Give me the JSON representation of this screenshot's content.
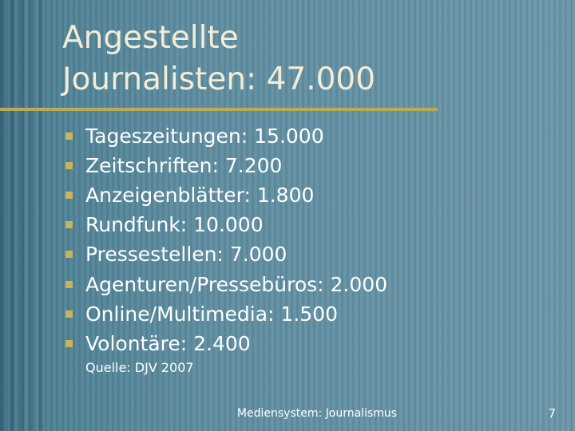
{
  "title": {
    "lines": [
      "Angestellte",
      "Journalisten: 47.000"
    ]
  },
  "bullets": [
    "Tageszeitungen: 15.000",
    "Zeitschriften: 7.200",
    "Anzeigenblätter: 1.800",
    "Rundfunk: 10.000",
    "Pressestellen: 7.000",
    "Agenturen/Pressebüros: 2.000",
    "Online/Multimedia: 1.500",
    "Volontäre: 2.400"
  ],
  "source": "Quelle: DJV 2007",
  "footer": {
    "text": "Mediensystem: Journalismus",
    "page": "7"
  }
}
